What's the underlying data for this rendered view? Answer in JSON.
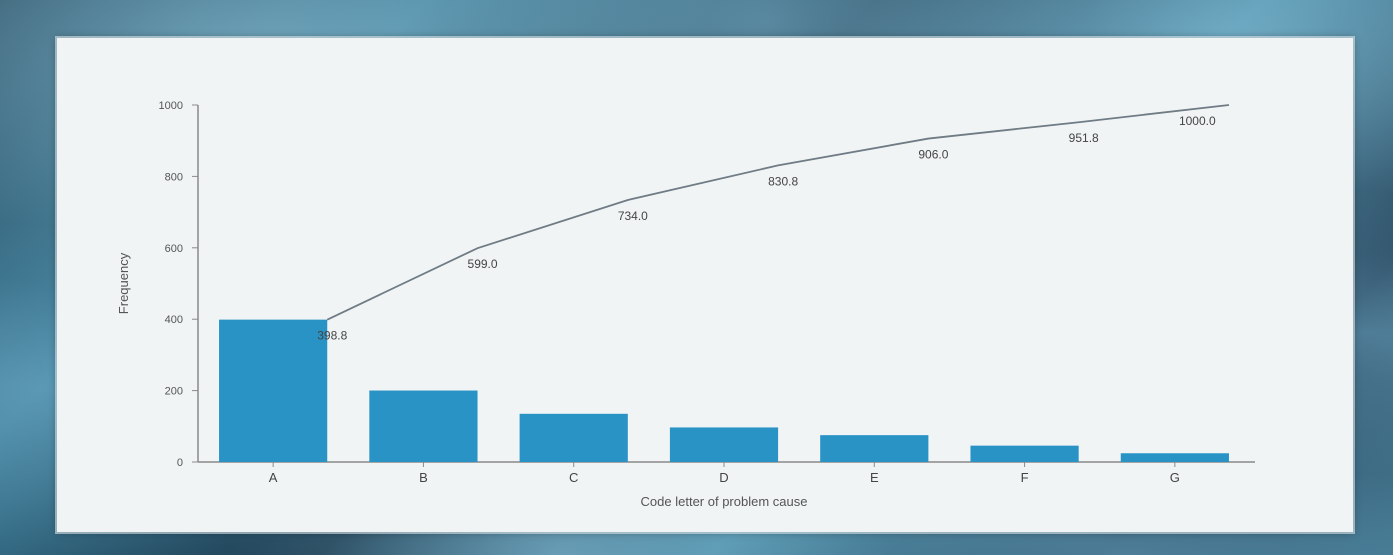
{
  "chart_data": {
    "type": "bar",
    "categories": [
      "A",
      "B",
      "C",
      "D",
      "E",
      "F",
      "G"
    ],
    "values": [
      398.8,
      200.2,
      135.0,
      96.8,
      75.2,
      45.8,
      24.5
    ],
    "series": [
      {
        "name": "",
        "values": [
          398.8,
          200.2,
          135.0,
          96.8,
          75.2,
          45.8,
          24.5
        ]
      }
    ],
    "cumulative": {
      "values": [
        398.8,
        599.0,
        734.0,
        830.8,
        906.0,
        951.8,
        1000.0
      ],
      "labels": [
        "398.8",
        "599.0",
        "734.0",
        "830.8",
        "906.0",
        "951.8",
        "1000.0"
      ]
    },
    "title": "",
    "xlabel": "Code letter of problem cause",
    "ylabel": "Frequency",
    "ylim": [
      0,
      1000
    ],
    "yticks": [
      0,
      200,
      400,
      600,
      800,
      1000
    ],
    "ytick_labels": [
      "0",
      "200",
      "400",
      "600",
      "800",
      "1000"
    ],
    "grid": false,
    "colors": {
      "bar": "#2a93c6",
      "line": "#6f7b85",
      "axis": "#8a8a8a",
      "panel": "#f1f4f4"
    }
  }
}
